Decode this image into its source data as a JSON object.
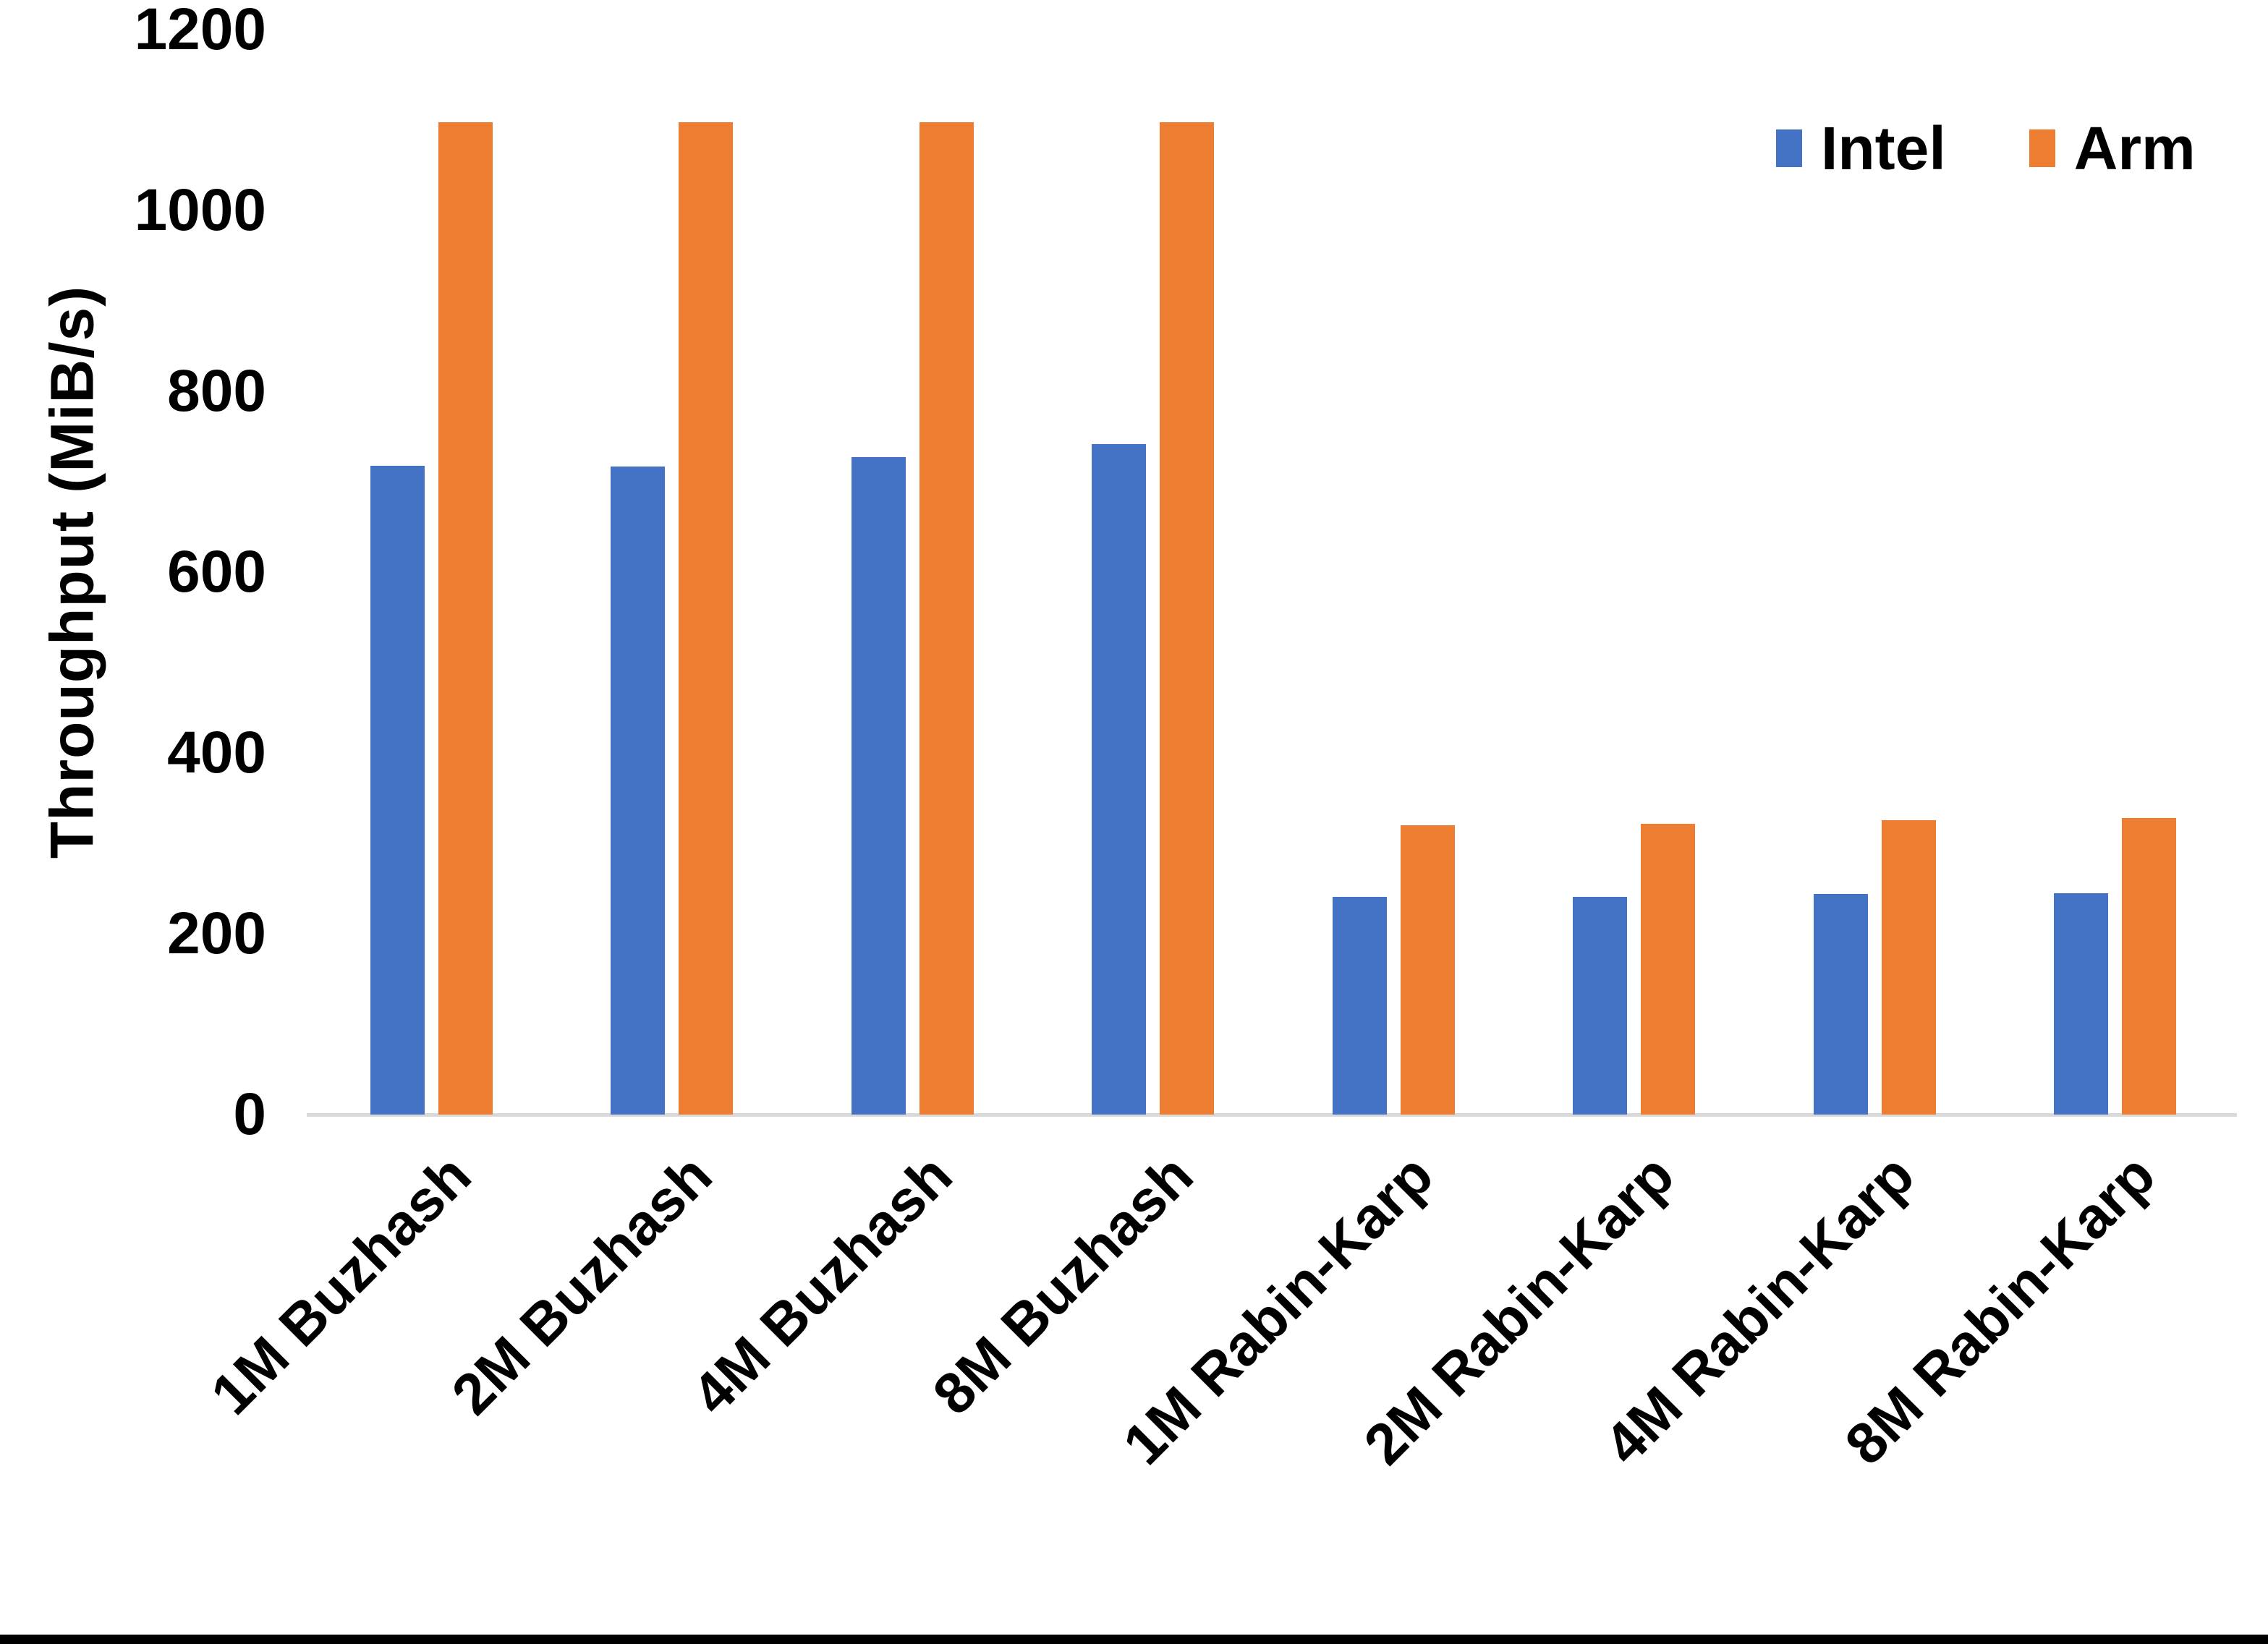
{
  "chart_data": {
    "type": "bar",
    "title": "",
    "xlabel": "",
    "ylabel": "Throughput (MiB/s)",
    "ylim": [
      0,
      1200
    ],
    "yticks": [
      0,
      200,
      400,
      600,
      800,
      1000,
      1200
    ],
    "grid": false,
    "legend_position": "top-right",
    "axis_line_color": "#d9d9d9",
    "text_color": "#000000",
    "categories": [
      "1M Buzhash",
      "2M Buzhash",
      "4M Buzhash",
      "8M Buzhash",
      "1M Rabin-Karp",
      "2M Rabin-Karp",
      "4M Rabin-Karp",
      "8M Rabin-Karp"
    ],
    "series": [
      {
        "name": "Intel",
        "color": "#4472C4",
        "values": [
          718,
          717,
          727,
          742,
          241,
          241,
          244,
          245
        ]
      },
      {
        "name": "Arm",
        "color": "#ED7D31",
        "values": [
          1098,
          1098,
          1098,
          1098,
          320,
          322,
          326,
          328
        ]
      }
    ]
  },
  "page": {
    "bottom_border_color": "#000000"
  }
}
